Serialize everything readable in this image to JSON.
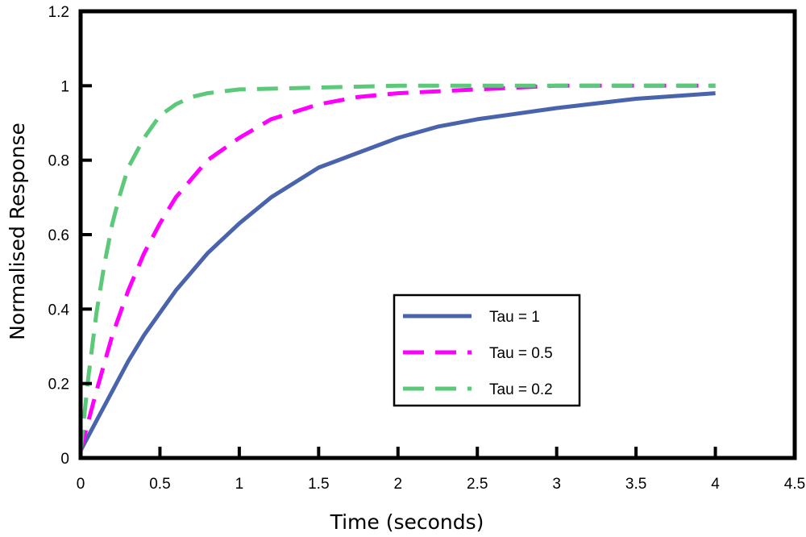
{
  "chart_data": {
    "type": "line",
    "title": "",
    "xlabel": "Time (seconds)",
    "ylabel": "Normalised Response",
    "xlim": [
      0,
      4.5
    ],
    "ylim": [
      0,
      1.2
    ],
    "xticks": [
      "0",
      "0.5",
      "1",
      "1.5",
      "2",
      "2.5",
      "3",
      "3.5",
      "4",
      "4.5"
    ],
    "yticks": [
      "0",
      "0.2",
      "0.4",
      "0.6",
      "0.8",
      "1",
      "1.2"
    ],
    "grid": false,
    "legend_position": "center-right",
    "series": [
      {
        "name": "Tau = 1",
        "color": "#4a63ad",
        "dash": "solid",
        "x": [
          0,
          0.1,
          0.2,
          0.3,
          0.4,
          0.5,
          0.6,
          0.7,
          0.8,
          1.0,
          1.2,
          1.5,
          1.75,
          2.0,
          2.25,
          2.5,
          3.0,
          3.5,
          4.0
        ],
        "y": [
          0.02,
          0.1,
          0.18,
          0.26,
          0.33,
          0.39,
          0.45,
          0.5,
          0.55,
          0.63,
          0.7,
          0.78,
          0.82,
          0.86,
          0.89,
          0.91,
          0.94,
          0.965,
          0.98
        ]
      },
      {
        "name": "Tau = 0.5",
        "color": "#ff00ff",
        "dash": "dashed",
        "x": [
          0,
          0.05,
          0.1,
          0.2,
          0.3,
          0.4,
          0.5,
          0.6,
          0.7,
          0.8,
          1.0,
          1.2,
          1.5,
          1.75,
          2.0,
          2.5,
          3.0,
          3.5,
          4.0
        ],
        "y": [
          0.02,
          0.1,
          0.18,
          0.33,
          0.45,
          0.55,
          0.63,
          0.7,
          0.75,
          0.8,
          0.86,
          0.91,
          0.95,
          0.97,
          0.98,
          0.99,
          1.0,
          1.0,
          1.0
        ]
      },
      {
        "name": "Tau = 0.2",
        "color": "#5cc97a",
        "dash": "dashed",
        "x": [
          0,
          0.02,
          0.05,
          0.1,
          0.15,
          0.2,
          0.25,
          0.3,
          0.4,
          0.5,
          0.6,
          0.7,
          0.8,
          1.0,
          1.5,
          2.0,
          3.0,
          4.0
        ],
        "y": [
          0.02,
          0.1,
          0.22,
          0.39,
          0.52,
          0.63,
          0.71,
          0.78,
          0.86,
          0.92,
          0.95,
          0.97,
          0.98,
          0.99,
          0.995,
          1.0,
          1.0,
          1.0
        ]
      }
    ]
  }
}
